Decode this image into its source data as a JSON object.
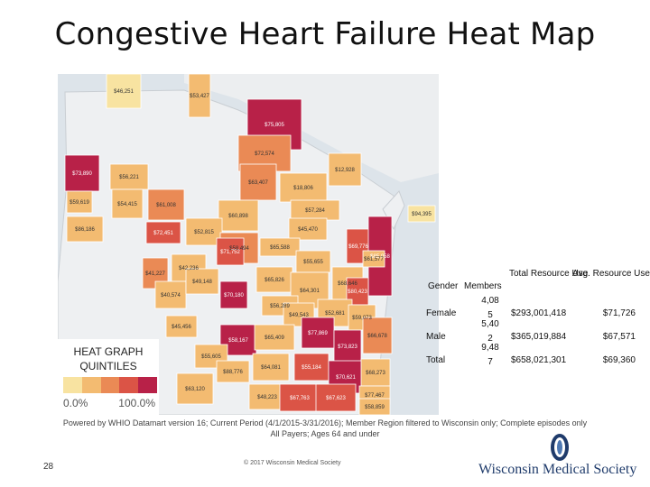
{
  "title": "Congestive Heart Failure Heat Map",
  "legend": {
    "title_line1": "HEAT GRAPH",
    "title_line2": "QUINTILES",
    "min_label": "0.0%",
    "max_label": "100.0%",
    "colors": [
      "#f8e3a1",
      "#f3bb71",
      "#ea8a55",
      "#db5446",
      "#b82148"
    ]
  },
  "map": {
    "water_color": "#dde4ea",
    "land_color": "#eef0f2",
    "region_labels": [
      "$46,251",
      "$53,427",
      "$75,805",
      "$72,574",
      "$73,890",
      "$56,221",
      "$63,407",
      "$12,928",
      "$59,619",
      "$54,415",
      "$61,008",
      "$18,806",
      "$57,284",
      "$60,898",
      "$45,470",
      "$86,186",
      "$72,451",
      "$52,815",
      "$58,494",
      "$65,588",
      "$69,776",
      "$85,058",
      "$71,752",
      "$55,655",
      "$61,577",
      "$41,227",
      "$42,236",
      "$65,826",
      "$64,301",
      "$68,646",
      "$80,423",
      "$40,574",
      "$49,148",
      "$70,180",
      "$56,289",
      "$49,543",
      "$52,681",
      "$59,073",
      "$45,456",
      "$77,869",
      "$58,167",
      "$65,409",
      "$73,823",
      "$55,605",
      "$88,776",
      "$64,081",
      "$55,184",
      "$70,621",
      "$66,678",
      "$63,120",
      "$48,223",
      "$67,763",
      "$67,623",
      "$68,273",
      "$77,467",
      "$58,859",
      "$94,395"
    ]
  },
  "stats_table": {
    "headers": [
      "Gender",
      "Members",
      "Total Resource Use",
      "Avg. Resource Use"
    ],
    "rows": [
      {
        "gender": "Female",
        "members": "4,08 5",
        "total": "$293,001,418",
        "avg": "$71,726"
      },
      {
        "gender": "Male",
        "members": "5,40 2",
        "total": "$365,019,884",
        "avg": "$67,571"
      },
      {
        "gender": "Total",
        "members": "9,48 7",
        "total": "$658,021,301",
        "avg": "$69,360"
      }
    ]
  },
  "footnote_line1": "Powered by WHIO Datamart version 16; Current Period (4/1/2015-3/31/2016); Member Region filtered to Wisconsin only; Complete episodes only",
  "footnote_line2": "All Payers; Ages 64 and under",
  "page_number": "28",
  "copyright": "© 2017 Wisconsin Medical Society",
  "logo_text": "Wisconsin Medical Society"
}
